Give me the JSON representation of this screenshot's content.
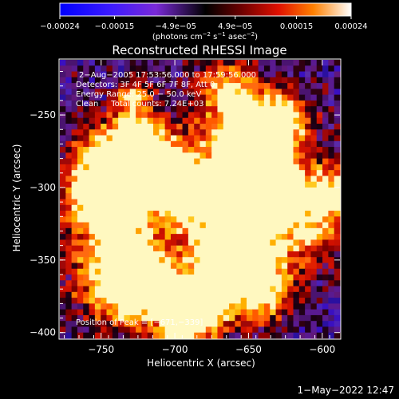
{
  "chart_data": {
    "type": "heatmap",
    "title": "Reconstructed RHESSI Image",
    "xlabel": "Heliocentric X (arcsec)",
    "ylabel": "Heliocentric Y (arcsec)",
    "xlim": [
      -778,
      -588
    ],
    "ylim": [
      -404,
      -212
    ],
    "x_ticks": [
      -750,
      -700,
      -650,
      -600
    ],
    "y_ticks": [
      -250,
      -300,
      -350,
      -400
    ],
    "x_tick_labels": [
      "−750",
      "−700",
      "−650",
      "−600"
    ],
    "y_tick_labels": [
      "−250",
      "−300",
      "−350",
      "−400"
    ],
    "grid_cols": 48,
    "grid_rows": 48,
    "colorbar": {
      "colormap": "red-temperature with negative blue-purple",
      "range": [
        -0.00024,
        0.00024
      ],
      "ticks": [
        -0.00024,
        -0.00015,
        -4.9e-05,
        4.9e-05,
        0.00015,
        0.00024
      ],
      "tick_labels": [
        "−0.00024",
        "−0.00015",
        "−4.9e−05",
        "4.9e−05",
        "0.00015",
        "0.00024"
      ],
      "unit_label_parts": [
        "(photons cm",
        "−2",
        " s",
        "−1",
        " asec",
        "−2",
        ")"
      ]
    },
    "peak": {
      "x": -671,
      "y": -339
    }
  },
  "annotations": {
    "line1": "2−Aug−2005 17:53:56.000 to 17:59:56.000",
    "line2": "Detectors: 3F 4F 5F 6F 7F 8F, Att 0",
    "line3": "Energy Range: 25.0 − 50.0 keV",
    "line4": "Clean     Total counts: 7.24E+03",
    "peak_text": "Position of Peak = [−671,−339]"
  },
  "footer": "1−May−2022 12:47"
}
